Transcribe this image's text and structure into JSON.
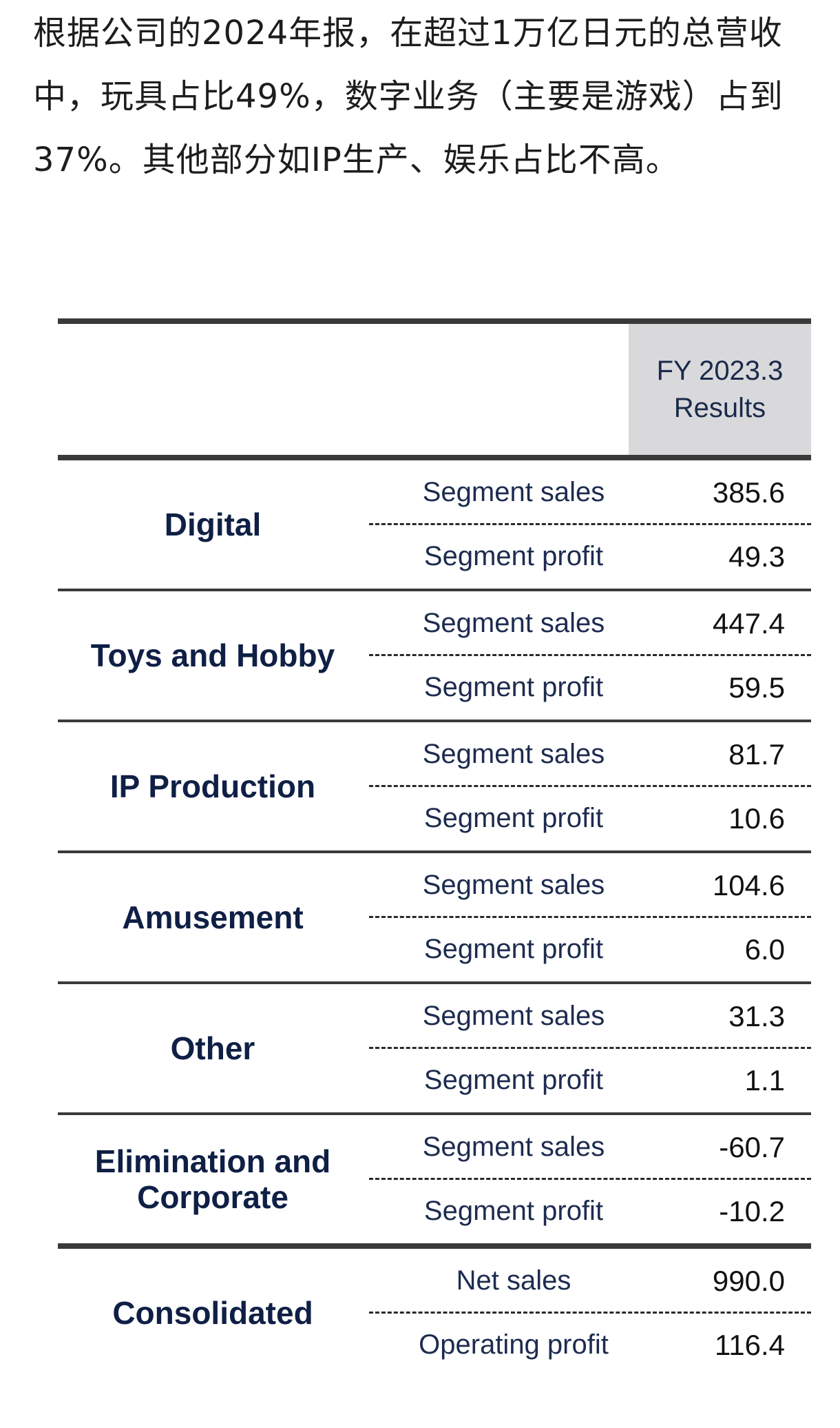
{
  "intro_text": "根据公司的2024年报，在超过1万亿日元的总营收中，玩具占比49%，数字业务（主要是游戏）占到37%。其他部分如IP生产、娱乐占比不高。",
  "table": {
    "header": {
      "line1": "FY 2023.3",
      "line2": "Results"
    },
    "segments": [
      {
        "name": "Digital",
        "metric1_label": "Segment sales",
        "metric1_value": "385.6",
        "metric2_label": "Segment profit",
        "metric2_value": "49.3"
      },
      {
        "name": "Toys and Hobby",
        "metric1_label": "Segment sales",
        "metric1_value": "447.4",
        "metric2_label": "Segment profit",
        "metric2_value": "59.5"
      },
      {
        "name": "IP Production",
        "metric1_label": "Segment sales",
        "metric1_value": "81.7",
        "metric2_label": "Segment profit",
        "metric2_value": "10.6"
      },
      {
        "name": "Amusement",
        "metric1_label": "Segment sales",
        "metric1_value": "104.6",
        "metric2_label": "Segment profit",
        "metric2_value": "6.0"
      },
      {
        "name": "Other",
        "metric1_label": "Segment sales",
        "metric1_value": "31.3",
        "metric2_label": "Segment profit",
        "metric2_value": "1.1"
      },
      {
        "name": "Elimination and Corporate",
        "metric1_label": "Segment sales",
        "metric1_value": "-60.7",
        "metric2_label": "Segment profit",
        "metric2_value": "-10.2"
      },
      {
        "name": "Consolidated",
        "metric1_label": "Net sales",
        "metric1_value": "990.0",
        "metric2_label": "Operating profit",
        "metric2_value": "116.4"
      }
    ]
  },
  "colors": {
    "header_bg": "#d9d9dc",
    "segment_name": "#0f1f45",
    "rule": "#3a3a3a"
  }
}
